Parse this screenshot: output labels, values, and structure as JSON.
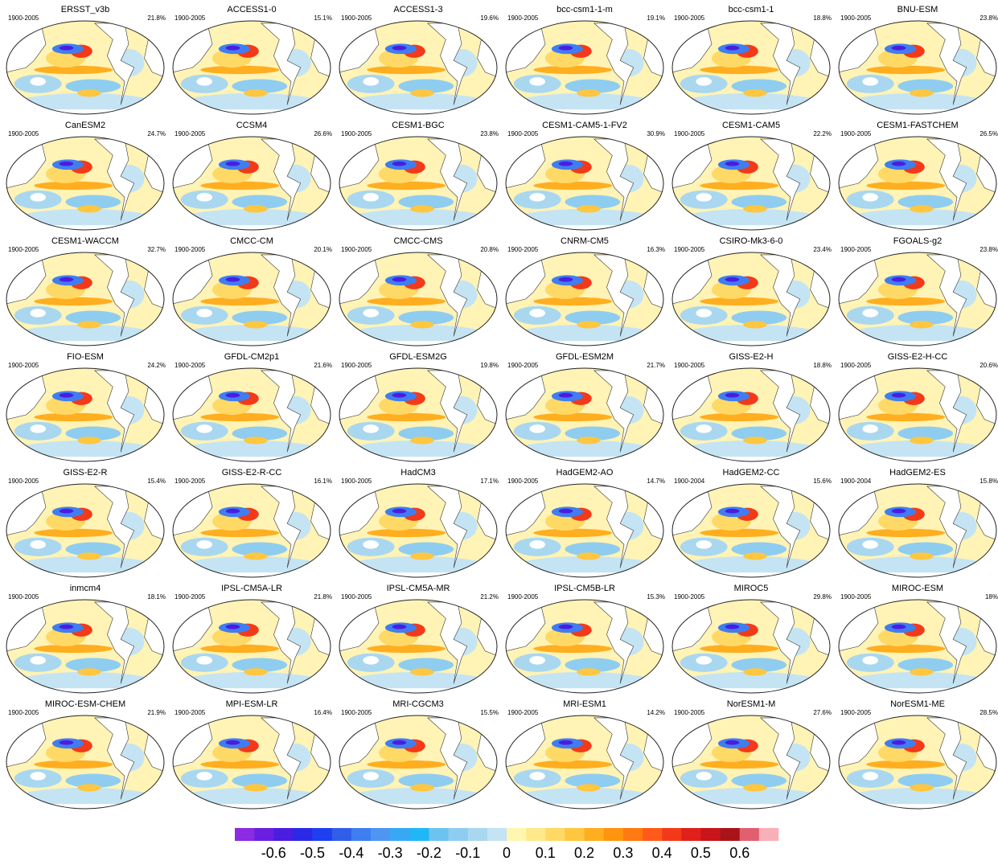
{
  "panels": [
    {
      "name": "ERSST_v3b",
      "period": "1900-2005",
      "percent": "21.8%"
    },
    {
      "name": "ACCESS1-0",
      "period": "1900-2005",
      "percent": "15.1%"
    },
    {
      "name": "ACCESS1-3",
      "period": "1900-2005",
      "percent": "19.6%"
    },
    {
      "name": "bcc-csm1-1-m",
      "period": "1900-2005",
      "percent": "19.1%"
    },
    {
      "name": "bcc-csm1-1",
      "period": "1900-2005",
      "percent": "18.8%"
    },
    {
      "name": "BNU-ESM",
      "period": "1900-2005",
      "percent": "23.8%"
    },
    {
      "name": "CanESM2",
      "period": "1900-2005",
      "percent": "24.7%"
    },
    {
      "name": "CCSM4",
      "period": "1900-2005",
      "percent": "26.6%"
    },
    {
      "name": "CESM1-BGC",
      "period": "1900-2005",
      "percent": "23.8%"
    },
    {
      "name": "CESM1-CAM5-1-FV2",
      "period": "1900-2005",
      "percent": "30.9%"
    },
    {
      "name": "CESM1-CAM5",
      "period": "1900-2005",
      "percent": "22.2%"
    },
    {
      "name": "CESM1-FASTCHEM",
      "period": "1900-2005",
      "percent": "26.5%"
    },
    {
      "name": "CESM1-WACCM",
      "period": "1900-2005",
      "percent": "32.7%"
    },
    {
      "name": "CMCC-CM",
      "period": "1900-2005",
      "percent": "20.1%"
    },
    {
      "name": "CMCC-CMS",
      "period": "1900-2005",
      "percent": "20.8%"
    },
    {
      "name": "CNRM-CM5",
      "period": "1900-2005",
      "percent": "16.3%"
    },
    {
      "name": "CSIRO-Mk3-6-0",
      "period": "1900-2005",
      "percent": "23.4%"
    },
    {
      "name": "FGOALS-g2",
      "period": "1900-2005",
      "percent": "23.8%"
    },
    {
      "name": "FIO-ESM",
      "period": "1900-2005",
      "percent": "24.2%"
    },
    {
      "name": "GFDL-CM2p1",
      "period": "1900-2005",
      "percent": "21.6%"
    },
    {
      "name": "GFDL-ESM2G",
      "period": "1900-2005",
      "percent": "19.8%"
    },
    {
      "name": "GFDL-ESM2M",
      "period": "1900-2005",
      "percent": "21.7%"
    },
    {
      "name": "GISS-E2-H",
      "period": "1900-2005",
      "percent": "18.8%"
    },
    {
      "name": "GISS-E2-H-CC",
      "period": "1900-2005",
      "percent": "20.6%"
    },
    {
      "name": "GISS-E2-R",
      "period": "1900-2005",
      "percent": "15.4%"
    },
    {
      "name": "GISS-E2-R-CC",
      "period": "1900-2005",
      "percent": "16.1%"
    },
    {
      "name": "HadCM3",
      "period": "1900-2005",
      "percent": "17.1%"
    },
    {
      "name": "HadGEM2-AO",
      "period": "1900-2005",
      "percent": "14.7%"
    },
    {
      "name": "HadGEM2-CC",
      "period": "1900-2004",
      "percent": "15.6%"
    },
    {
      "name": "HadGEM2-ES",
      "period": "1900-2004",
      "percent": "15.8%"
    },
    {
      "name": "inmcm4",
      "period": "1900-2005",
      "percent": "18.1%"
    },
    {
      "name": "IPSL-CM5A-LR",
      "period": "1900-2005",
      "percent": "21.8%"
    },
    {
      "name": "IPSL-CM5A-MR",
      "period": "1900-2005",
      "percent": "21.2%"
    },
    {
      "name": "IPSL-CM5B-LR",
      "period": "1900-2005",
      "percent": "15.3%"
    },
    {
      "name": "MIROC5",
      "period": "1900-2005",
      "percent": "29.8%"
    },
    {
      "name": "MIROC-ESM",
      "period": "1900-2005",
      "percent": "18%"
    },
    {
      "name": "MIROC-ESM-CHEM",
      "period": "1900-2005",
      "percent": "21.9%"
    },
    {
      "name": "MPI-ESM-LR",
      "period": "1900-2005",
      "percent": "16.4%"
    },
    {
      "name": "MRI-CGCM3",
      "period": "1900-2005",
      "percent": "15.5%"
    },
    {
      "name": "MRI-ESM1",
      "period": "1900-2005",
      "percent": "14.2%"
    },
    {
      "name": "NorESM1-M",
      "period": "1900-2005",
      "percent": "27.6%"
    },
    {
      "name": "NorESM1-ME",
      "period": "1900-2005",
      "percent": "28.5%"
    }
  ],
  "colorbar": {
    "xlim": [
      -0.7,
      0.7
    ],
    "ticks": [
      -0.6,
      -0.5,
      -0.4,
      -0.3,
      -0.2,
      -0.1,
      0,
      0.1,
      0.2,
      0.3,
      0.4,
      0.5,
      0.6
    ],
    "colors": [
      "#8b2be2",
      "#6a1fe0",
      "#4b1de0",
      "#2a2ae6",
      "#1e40f0",
      "#2f5ee8",
      "#3f7ef0",
      "#4f95f2",
      "#38a8f5",
      "#1fb8f5",
      "#6cc3f0",
      "#8fcdf0",
      "#a9d7f0",
      "#c4e4f4",
      "#fff6b0",
      "#ffe98a",
      "#ffd966",
      "#ffc640",
      "#ffae20",
      "#ff9410",
      "#ff7a10",
      "#ff5a1a",
      "#f23a1a",
      "#e0201a",
      "#c8141a",
      "#a8141a",
      "#e06070",
      "#f8b0b8"
    ]
  }
}
